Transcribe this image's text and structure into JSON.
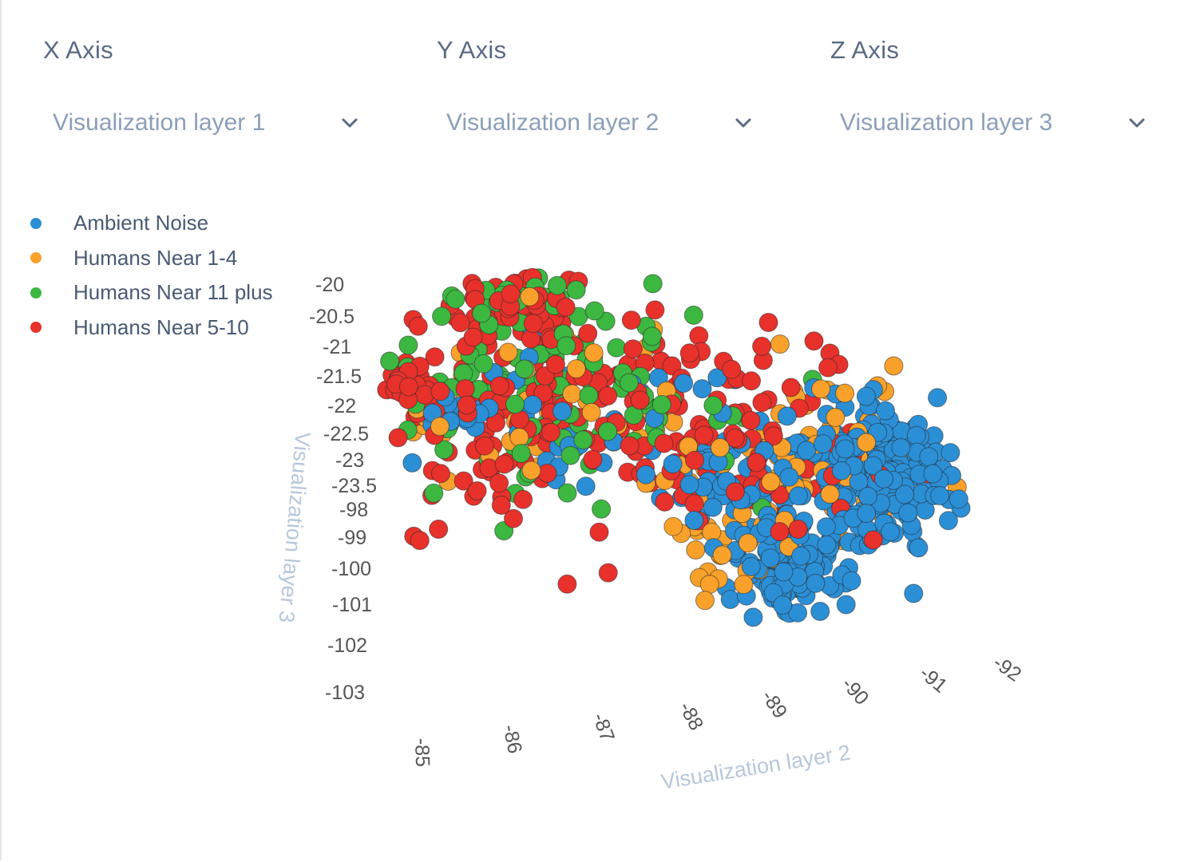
{
  "controls": {
    "x_axis": {
      "title": "X Axis",
      "selected": "Visualization layer 1"
    },
    "y_axis": {
      "title": "Y Axis",
      "selected": "Visualization layer 2"
    },
    "z_axis": {
      "title": "Z Axis",
      "selected": "Visualization layer 3"
    }
  },
  "icons": {
    "dropdown": "chevron-down-icon",
    "legend_marker": "circle-marker-icon"
  },
  "chart_data": {
    "type": "scatter",
    "projection": "3d",
    "xlabel": "Visualization layer 2",
    "zlabel": "Visualization layer 3",
    "x_ticks": [
      "-85",
      "-86",
      "-87",
      "-88",
      "-89",
      "-90",
      "-91",
      "-92"
    ],
    "y_ticks": [
      "-20",
      "-20.5",
      "-21",
      "-21.5",
      "-22",
      "-22.5",
      "-23",
      "-23.5"
    ],
    "z_ticks": [
      "-98",
      "-99",
      "-100",
      "-101",
      "-102",
      "-103"
    ],
    "legend_position": "top-left",
    "grid": false,
    "series": [
      {
        "name": "Ambient Noise",
        "color": "#2b8fd6",
        "count": 420
      },
      {
        "name": "Humans Near 1-4",
        "color": "#f9a12a",
        "count": 150
      },
      {
        "name": "Humans Near 11 plus",
        "color": "#3cb840",
        "count": 130
      },
      {
        "name": "Humans Near 5-10",
        "color": "#e8312b",
        "count": 300
      }
    ]
  }
}
